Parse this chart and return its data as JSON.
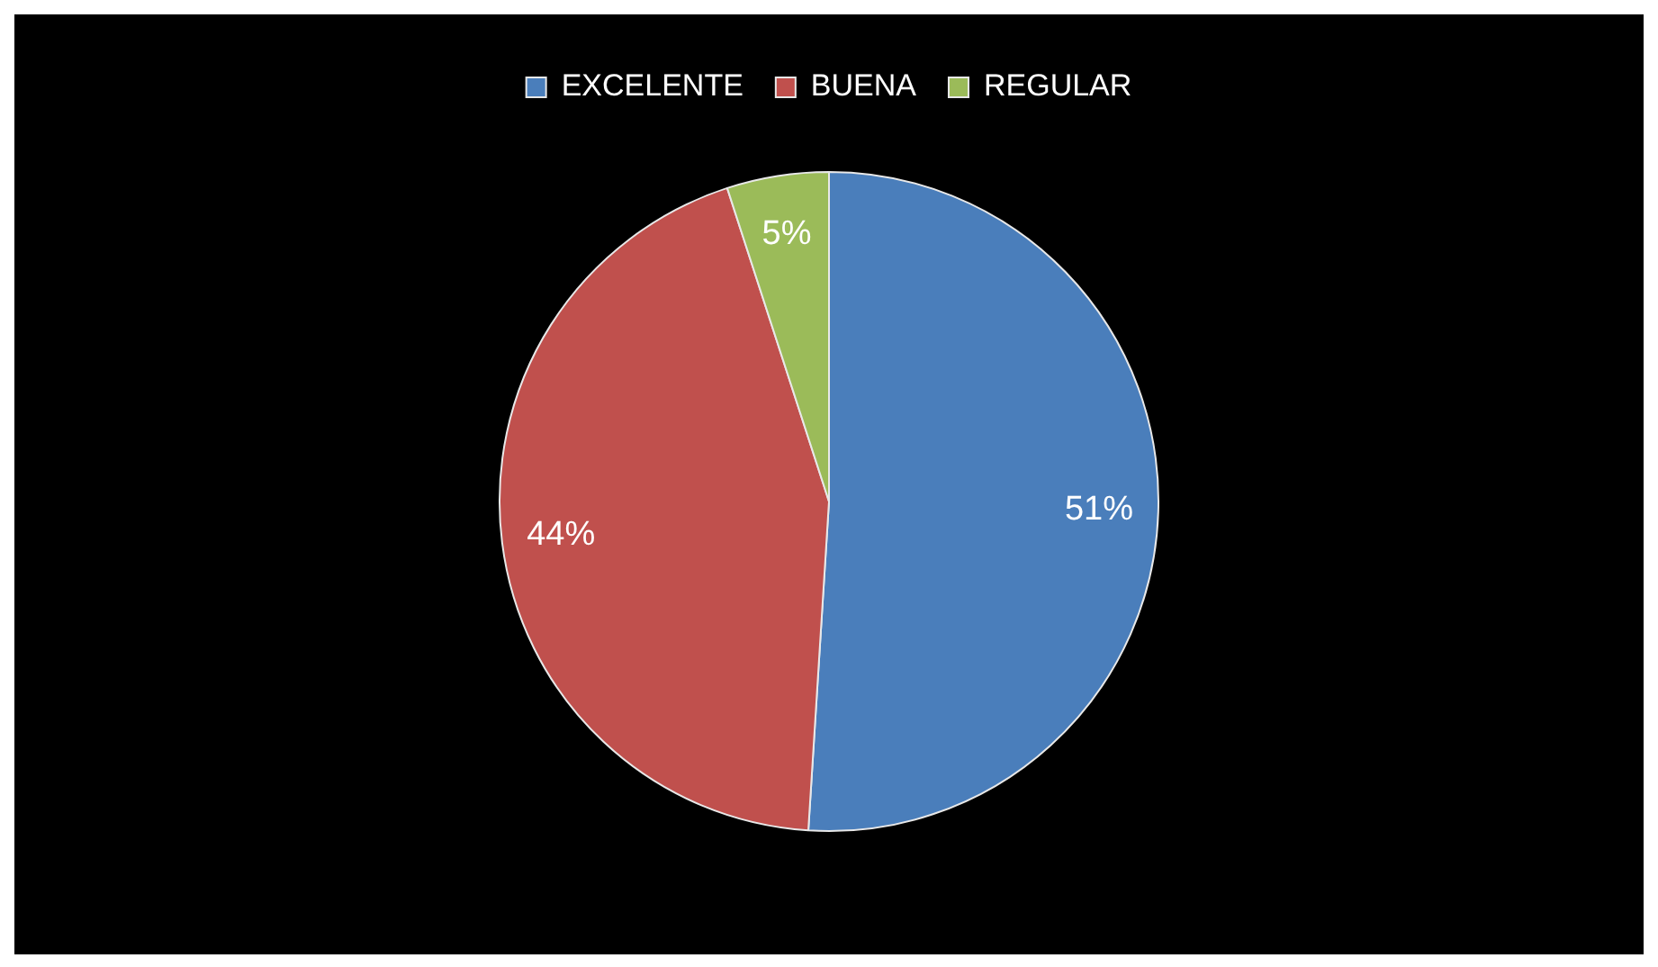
{
  "chart_data": {
    "type": "pie",
    "categories": [
      "EXCELENTE",
      "BUENA",
      "REGULAR"
    ],
    "values": [
      51,
      44,
      5
    ],
    "colors": [
      "#4a7ebb",
      "#c0504d",
      "#9bbb59"
    ],
    "value_labels": [
      "51%",
      "44%",
      "5%"
    ],
    "legend": "top"
  }
}
